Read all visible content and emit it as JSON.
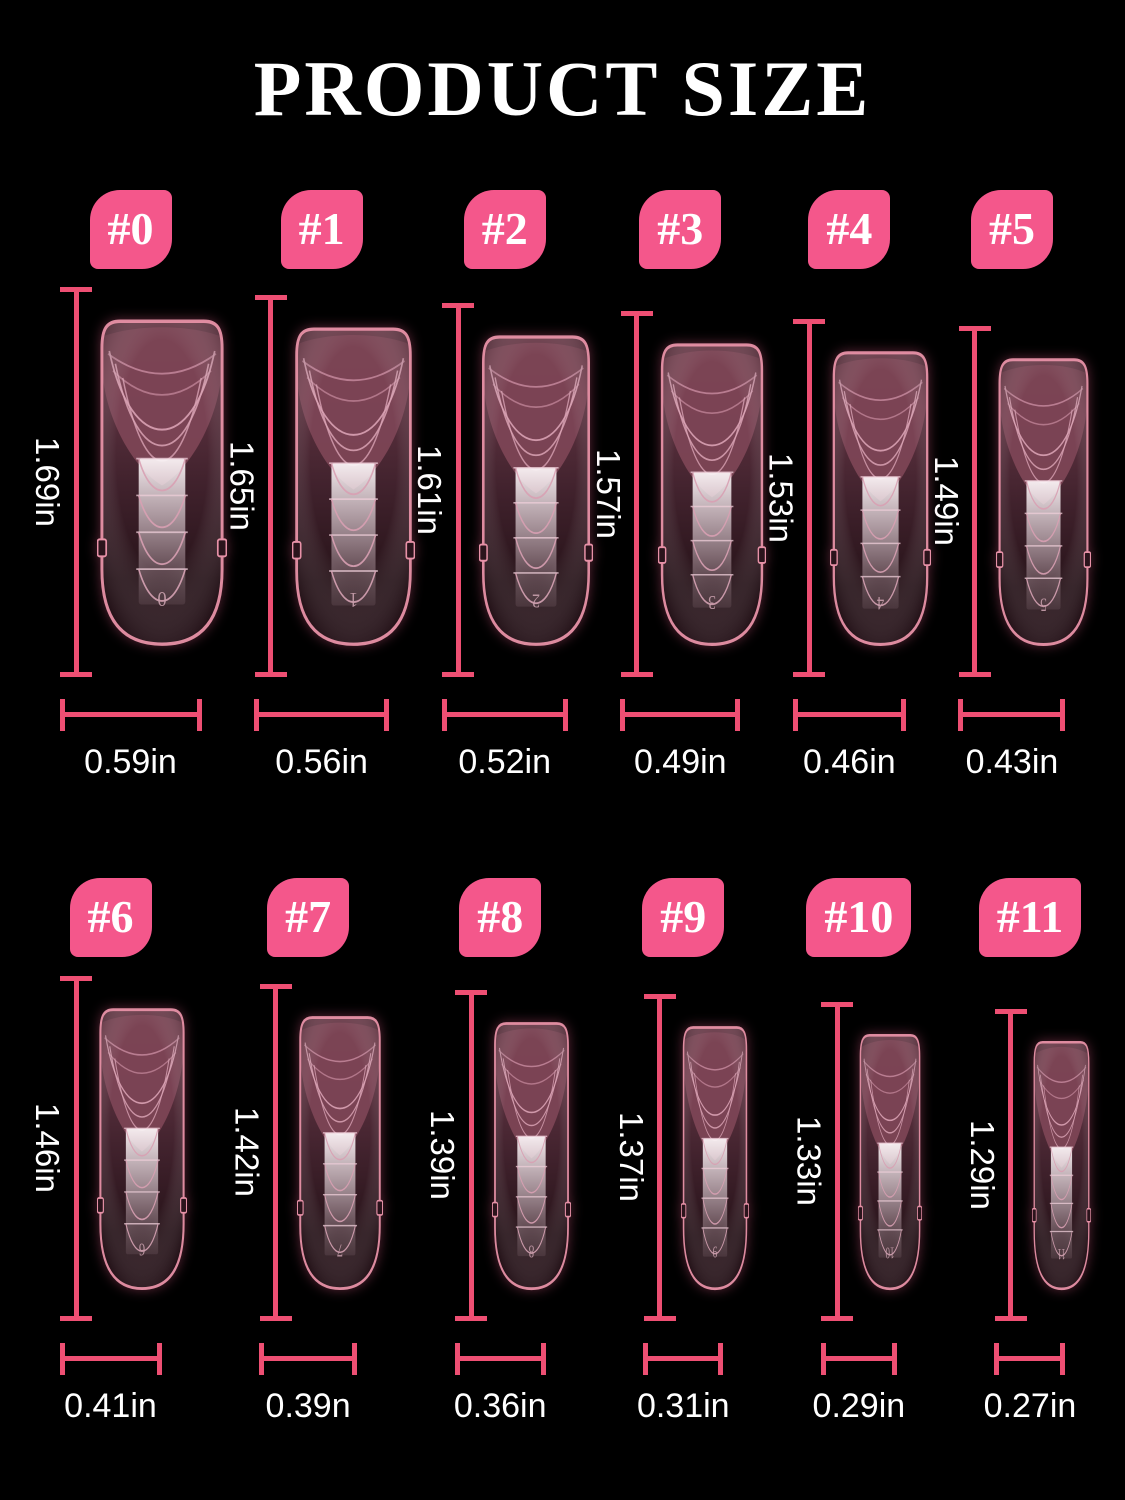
{
  "title": "PRODUCT SIZE",
  "colors": {
    "background": "#000000",
    "badge_pink": "#f4578b",
    "dimension_line_pink": "#ee4f73",
    "nail_outline_pink": "#e791a7",
    "nail_body_mauve": "#5d3240",
    "text_white": "#ffffff"
  },
  "rows": [
    {
      "sizes": [
        {
          "tag": "#0",
          "digit": "0",
          "length": "1.69in",
          "width": "0.59in"
        },
        {
          "tag": "#1",
          "digit": "1",
          "length": "1.65in",
          "width": "0.56in"
        },
        {
          "tag": "#2",
          "digit": "2",
          "length": "1.61in",
          "width": "0.52in"
        },
        {
          "tag": "#3",
          "digit": "3",
          "length": "1.57in",
          "width": "0.49in"
        },
        {
          "tag": "#4",
          "digit": "4",
          "length": "1.53in",
          "width": "0.46in"
        },
        {
          "tag": "#5",
          "digit": "5",
          "length": "1.49in",
          "width": "0.43in"
        }
      ]
    },
    {
      "sizes": [
        {
          "tag": "#6",
          "digit": "6",
          "length": "1.46in",
          "width": "0.41in"
        },
        {
          "tag": "#7",
          "digit": "7",
          "length": "1.42in",
          "width": "0.39n"
        },
        {
          "tag": "#8",
          "digit": "8",
          "length": "1.39in",
          "width": "0.36in"
        },
        {
          "tag": "#9",
          "digit": "9",
          "length": "1.37in",
          "width": "0.31in"
        },
        {
          "tag": "#10",
          "digit": "10",
          "length": "1.33in",
          "width": "0.29in"
        },
        {
          "tag": "#11",
          "digit": "11",
          "length": "1.29in",
          "width": "0.27in"
        }
      ]
    }
  ]
}
